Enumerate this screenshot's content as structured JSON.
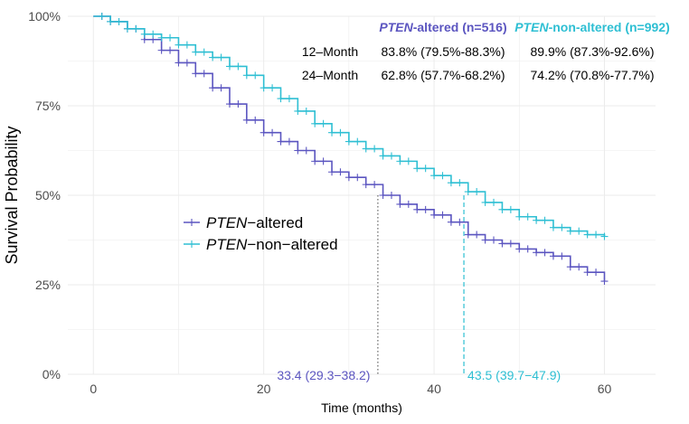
{
  "chart_data": {
    "type": "line",
    "xlabel": "Time (months)",
    "ylabel": "Survival Probability",
    "xlim": [
      -3,
      66
    ],
    "ylim": [
      0,
      1
    ],
    "x_ticks": [
      0,
      20,
      40,
      60
    ],
    "y_ticks": [
      0,
      0.25,
      0.5,
      0.75,
      1.0
    ],
    "y_tick_labels": [
      "0%",
      "25%",
      "50%",
      "75%",
      "100%"
    ],
    "grid": true,
    "colors": {
      "altered": "#5b55c0",
      "nonaltered": "#2ebfd3"
    },
    "series": [
      {
        "key": "altered",
        "name_italic": "PTEN",
        "name_rest": "−altered",
        "x": [
          0,
          2,
          4,
          6,
          8,
          10,
          12,
          14,
          16,
          18,
          20,
          22,
          24,
          26,
          28,
          30,
          32,
          34,
          36,
          38,
          40,
          42,
          44,
          46,
          48,
          50,
          52,
          54,
          56,
          58,
          60
        ],
        "y": [
          1.0,
          0.985,
          0.965,
          0.935,
          0.905,
          0.87,
          0.84,
          0.8,
          0.755,
          0.71,
          0.675,
          0.65,
          0.625,
          0.595,
          0.565,
          0.55,
          0.53,
          0.5,
          0.475,
          0.46,
          0.445,
          0.425,
          0.39,
          0.375,
          0.365,
          0.35,
          0.34,
          0.33,
          0.3,
          0.285,
          0.26
        ]
      },
      {
        "key": "nonaltered",
        "name_italic": "PTEN",
        "name_rest": "−non−altered",
        "x": [
          0,
          2,
          4,
          6,
          8,
          10,
          12,
          14,
          16,
          18,
          20,
          22,
          24,
          26,
          28,
          30,
          32,
          34,
          36,
          38,
          40,
          42,
          44,
          46,
          48,
          50,
          52,
          54,
          56,
          58,
          60
        ],
        "y": [
          1.0,
          0.985,
          0.965,
          0.95,
          0.94,
          0.92,
          0.9,
          0.885,
          0.86,
          0.835,
          0.8,
          0.77,
          0.735,
          0.7,
          0.675,
          0.65,
          0.63,
          0.61,
          0.595,
          0.575,
          0.555,
          0.535,
          0.51,
          0.48,
          0.46,
          0.44,
          0.43,
          0.41,
          0.4,
          0.39,
          0.385
        ]
      }
    ],
    "medians": [
      {
        "key": "altered",
        "x": 33.4,
        "label": "33.4 (29.3−38.2)",
        "style": "dotted"
      },
      {
        "key": "nonaltered",
        "x": 43.5,
        "label": "43.5 (39.7−47.9)",
        "style": "dashed"
      }
    ],
    "table": {
      "header_altered_italic": "PTEN",
      "header_altered_rest": "-altered (n=516)",
      "header_nonaltered_italic": "PTEN",
      "header_nonaltered_rest": "-non-altered (n=992)",
      "rows": [
        {
          "label": "12–Month",
          "altered": "83.8% (79.5%-88.3%)",
          "nonaltered": "89.9% (87.3%-92.6%)"
        },
        {
          "label": "24–Month",
          "altered": "62.8% (57.7%-68.2%)",
          "nonaltered": "74.2% (70.8%-77.7%)"
        }
      ]
    }
  }
}
